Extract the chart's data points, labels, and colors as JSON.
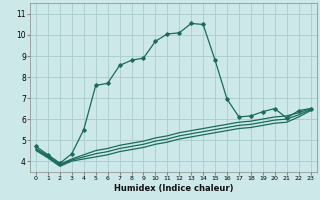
{
  "xlabel": "Humidex (Indice chaleur)",
  "bg_color": "#cce8e8",
  "grid_color": "#aacccc",
  "line_color": "#1a6b5a",
  "xlim": [
    -0.5,
    23.5
  ],
  "ylim": [
    3.5,
    11.5
  ],
  "xticks": [
    0,
    1,
    2,
    3,
    4,
    5,
    6,
    7,
    8,
    9,
    10,
    11,
    12,
    13,
    14,
    15,
    16,
    17,
    18,
    19,
    20,
    21,
    22,
    23
  ],
  "yticks": [
    4,
    5,
    6,
    7,
    8,
    9,
    10,
    11
  ],
  "main_x": [
    0,
    1,
    2,
    3,
    4,
    5,
    6,
    7,
    8,
    9,
    10,
    11,
    12,
    13,
    14,
    15,
    16,
    17,
    18,
    19,
    20,
    21,
    22,
    23
  ],
  "main_y": [
    4.7,
    4.3,
    3.9,
    4.35,
    5.5,
    7.6,
    7.7,
    8.55,
    8.8,
    8.9,
    9.7,
    10.05,
    10.1,
    10.55,
    10.5,
    8.8,
    6.95,
    6.1,
    6.15,
    6.35,
    6.5,
    6.05,
    6.4,
    6.5
  ],
  "line2_x": [
    0,
    1,
    2,
    3,
    4,
    5,
    6,
    7,
    8,
    9,
    10,
    11,
    12,
    13,
    14,
    15,
    16,
    17,
    18,
    19,
    20,
    21,
    22,
    23
  ],
  "line2_y": [
    4.6,
    4.25,
    3.85,
    4.1,
    4.3,
    4.5,
    4.6,
    4.75,
    4.85,
    4.95,
    5.1,
    5.2,
    5.35,
    5.45,
    5.55,
    5.65,
    5.75,
    5.85,
    5.9,
    6.0,
    6.1,
    6.15,
    6.3,
    6.5
  ],
  "line3_x": [
    0,
    1,
    2,
    3,
    4,
    5,
    6,
    7,
    8,
    9,
    10,
    11,
    12,
    13,
    14,
    15,
    16,
    17,
    18,
    19,
    20,
    21,
    22,
    23
  ],
  "line3_y": [
    4.55,
    4.2,
    3.8,
    4.05,
    4.2,
    4.35,
    4.45,
    4.6,
    4.7,
    4.8,
    4.95,
    5.05,
    5.2,
    5.3,
    5.4,
    5.5,
    5.6,
    5.7,
    5.75,
    5.85,
    5.95,
    6.0,
    6.2,
    6.45
  ],
  "line4_x": [
    0,
    1,
    2,
    3,
    4,
    5,
    6,
    7,
    8,
    9,
    10,
    11,
    12,
    13,
    14,
    15,
    16,
    17,
    18,
    19,
    20,
    21,
    22,
    23
  ],
  "line4_y": [
    4.5,
    4.15,
    3.75,
    4.0,
    4.1,
    4.2,
    4.3,
    4.45,
    4.55,
    4.65,
    4.8,
    4.9,
    5.05,
    5.15,
    5.25,
    5.35,
    5.45,
    5.55,
    5.6,
    5.7,
    5.8,
    5.85,
    6.1,
    6.4
  ]
}
